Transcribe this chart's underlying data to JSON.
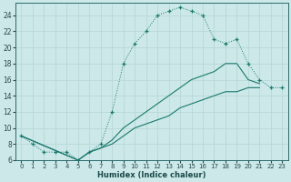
{
  "xlabel": "Humidex (Indice chaleur)",
  "bg_color": "#cce8e8",
  "line_color": "#1a7a6e",
  "grid_major_color": "#b8d8d8",
  "grid_minor_color": "#d0e8e8",
  "xlim": [
    -0.5,
    23.5
  ],
  "ylim": [
    6,
    25.5
  ],
  "xticks": [
    0,
    1,
    2,
    3,
    4,
    5,
    6,
    7,
    8,
    9,
    10,
    11,
    12,
    13,
    14,
    15,
    16,
    17,
    18,
    19,
    20,
    21,
    22,
    23
  ],
  "yticks": [
    6,
    8,
    10,
    12,
    14,
    16,
    18,
    20,
    22,
    24
  ],
  "line1_x": [
    0,
    1,
    2,
    3,
    4,
    5,
    6,
    7,
    8,
    9,
    10,
    11,
    12,
    13,
    14,
    15,
    16,
    17,
    18,
    19,
    20,
    21,
    22,
    23
  ],
  "line1_y": [
    9.0,
    8.0,
    7.0,
    7.0,
    7.0,
    6.0,
    7.0,
    8.0,
    12.0,
    18.0,
    20.5,
    22.0,
    24.0,
    24.5,
    25.0,
    24.5,
    24.0,
    21.0,
    20.5,
    21.0,
    18.0,
    16.0,
    15.0,
    15.0
  ],
  "line2_x": [
    0,
    5,
    6,
    7,
    8,
    9,
    10,
    11,
    12,
    13,
    14,
    15,
    16,
    17,
    18,
    19,
    20,
    21
  ],
  "line2_y": [
    9.0,
    6.0,
    7.0,
    7.5,
    8.5,
    10.0,
    11.0,
    12.0,
    13.0,
    14.0,
    15.0,
    16.0,
    16.5,
    17.0,
    18.0,
    18.0,
    16.0,
    15.5
  ],
  "line3_x": [
    0,
    5,
    6,
    7,
    8,
    9,
    10,
    11,
    12,
    13,
    14,
    15,
    16,
    17,
    18,
    19,
    20,
    21
  ],
  "line3_y": [
    9.0,
    6.0,
    7.0,
    7.5,
    8.0,
    9.0,
    10.0,
    10.5,
    11.0,
    11.5,
    12.5,
    13.0,
    13.5,
    14.0,
    14.5,
    14.5,
    15.0,
    15.0
  ]
}
